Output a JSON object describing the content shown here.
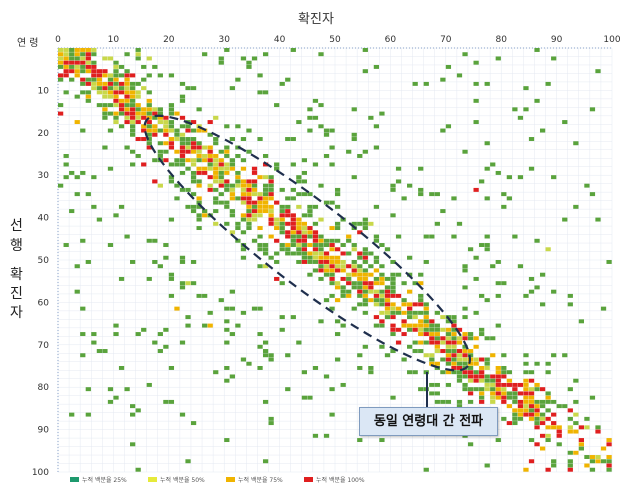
{
  "chart_data": {
    "type": "heatmap",
    "title": "확진자",
    "xlabel": "확진자",
    "ylabel": "선행 확진자",
    "x_axis_name": "연령",
    "x_ticks": [
      0,
      10,
      20,
      30,
      40,
      50,
      60,
      70,
      80,
      90,
      100
    ],
    "y_ticks": [
      10,
      20,
      30,
      40,
      50,
      60,
      70,
      80,
      90,
      100
    ],
    "xlim": [
      0,
      100
    ],
    "ylim": [
      0,
      100
    ],
    "annotation": "동일 연령대 간 전파",
    "colors": {
      "q25": "#5aa33c",
      "q50": "#c9d84a",
      "q75": "#f0b400",
      "q100": "#e01f1f",
      "ellipse": "#1f2f4d",
      "grid": "#e4e9f2"
    },
    "legend": [
      {
        "label": "누적 백분율 25%",
        "color": "#1e9a6e"
      },
      {
        "label": "누적 백분율 50%",
        "color": "#e6ea3a"
      },
      {
        "label": "누적 백분율 75%",
        "color": "#f0b400"
      },
      {
        "label": "누적 백분율 100%",
        "color": "#e01f1f"
      }
    ],
    "diagonal_band": {
      "from": [
        16,
        17
      ],
      "to": [
        74,
        75
      ],
      "half_width": 5
    }
  },
  "y_label_chars": [
    "선",
    "행",
    "확",
    "진",
    "자"
  ]
}
